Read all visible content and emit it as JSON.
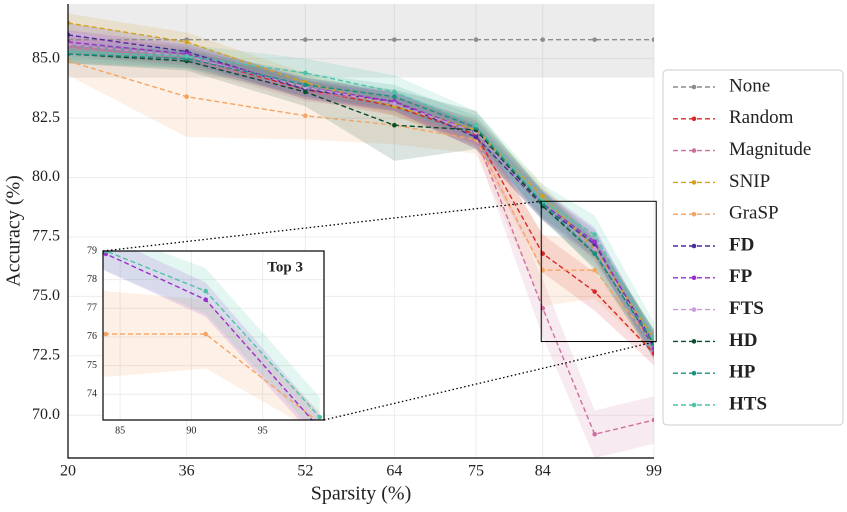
{
  "chart_data": {
    "type": "line",
    "xlabel": "Sparsity (%)",
    "ylabel": "Accuracy (%)",
    "x": [
      20,
      36,
      52,
      64,
      75,
      84,
      91,
      99
    ],
    "xlim": [
      20,
      99
    ],
    "ylim": [
      68.2,
      87.3
    ],
    "xticks": [
      20,
      36,
      52,
      64,
      75,
      84,
      99
    ],
    "yticks": [
      {
        "value": 70,
        "label": "70.0"
      },
      {
        "value": 72.5,
        "label": "72.5"
      },
      {
        "value": 75,
        "label": "75.0"
      },
      {
        "value": 77.5,
        "label": "77.5"
      },
      {
        "value": 80,
        "label": "80.0"
      },
      {
        "value": 82.5,
        "label": "82.5"
      },
      {
        "value": 85,
        "label": "85.0"
      }
    ],
    "grid": true,
    "legend": "right",
    "series": [
      {
        "name": "None",
        "color": "#8c8c8c",
        "values": [
          85.8,
          85.8,
          85.8,
          85.8,
          85.8,
          85.8,
          85.8,
          85.8
        ],
        "std": [
          1.6,
          1.6,
          1.6,
          1.6,
          1.6,
          1.6,
          1.6,
          1.6
        ]
      },
      {
        "name": "Random",
        "color": "#d62728",
        "values": [
          85.6,
          85.1,
          83.7,
          83.0,
          81.8,
          76.8,
          75.2,
          72.6
        ],
        "std": [
          0.4,
          0.4,
          0.4,
          0.4,
          0.5,
          0.8,
          0.8,
          0.5
        ]
      },
      {
        "name": "Magnitude",
        "color": "#cf6f9e",
        "values": [
          85.5,
          85.0,
          83.6,
          83.2,
          81.7,
          74.5,
          69.2,
          69.8
        ],
        "std": [
          0.4,
          0.4,
          0.4,
          0.4,
          0.5,
          1.2,
          1.0,
          1.0
        ]
      },
      {
        "name": "SNIP",
        "color": "#d4a21a",
        "values": [
          86.5,
          85.7,
          84.0,
          83.0,
          82.0,
          79.2,
          77.0,
          73.2
        ],
        "std": [
          0.4,
          0.4,
          0.4,
          0.4,
          0.5,
          0.5,
          0.5,
          0.4
        ]
      },
      {
        "name": "GraSP",
        "color": "#f4a460",
        "values": [
          84.9,
          83.4,
          82.6,
          82.2,
          81.6,
          76.1,
          76.1,
          73.0
        ],
        "std": [
          0.6,
          1.7,
          1.0,
          0.8,
          0.6,
          1.5,
          1.2,
          0.4
        ],
        "inset": true
      },
      {
        "name": "FD",
        "color": "#4b2a9a",
        "values": [
          86.0,
          85.3,
          83.7,
          83.2,
          81.7,
          78.8,
          77.2,
          73.0
        ],
        "std": [
          0.5,
          0.4,
          0.4,
          0.4,
          0.5,
          0.6,
          0.6,
          0.5
        ],
        "bold": true
      },
      {
        "name": "FP",
        "color": "#9b30c8",
        "values": [
          85.7,
          85.2,
          83.8,
          83.2,
          81.9,
          78.9,
          77.3,
          72.8
        ],
        "std": [
          0.5,
          0.4,
          0.4,
          0.4,
          0.5,
          0.6,
          0.6,
          0.5
        ],
        "bold": true,
        "inset": true
      },
      {
        "name": "FTS",
        "color": "#c99ad8",
        "values": [
          85.6,
          85.1,
          83.8,
          83.1,
          81.9,
          78.8,
          77.0,
          73.0
        ],
        "std": [
          0.5,
          0.4,
          0.4,
          0.4,
          0.5,
          0.6,
          0.6,
          0.5
        ],
        "bold": true
      },
      {
        "name": "HD",
        "color": "#0b4d2c",
        "values": [
          85.2,
          84.9,
          83.6,
          82.2,
          82.0,
          78.8,
          76.8,
          73.0
        ],
        "std": [
          0.4,
          0.4,
          0.6,
          1.5,
          0.8,
          0.6,
          0.6,
          0.6
        ],
        "bold": true
      },
      {
        "name": "HP",
        "color": "#1a9080",
        "values": [
          85.2,
          85.0,
          83.9,
          83.4,
          82.1,
          78.9,
          76.8,
          73.0
        ],
        "std": [
          0.4,
          0.4,
          0.5,
          0.5,
          0.5,
          0.6,
          0.7,
          0.6
        ],
        "bold": true
      },
      {
        "name": "HTS",
        "color": "#4dc4a8",
        "values": [
          85.3,
          85.1,
          84.4,
          83.6,
          82.2,
          79.0,
          77.6,
          73.2
        ],
        "std": [
          0.4,
          0.5,
          0.6,
          0.7,
          0.6,
          0.7,
          0.8,
          0.7
        ],
        "bold": true,
        "inset": true
      }
    ],
    "inset": {
      "title": "Top 3",
      "xlim": [
        83.8,
        99.3
      ],
      "ylim": [
        73.1,
        79.0
      ],
      "xticks": [
        85,
        90,
        95
      ],
      "yticks": [
        74,
        75,
        76,
        77,
        78,
        79
      ]
    }
  }
}
